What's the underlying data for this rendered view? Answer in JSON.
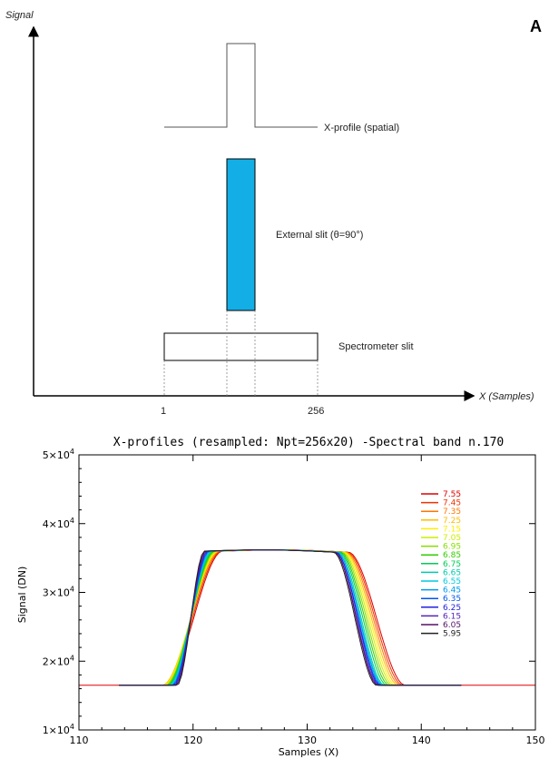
{
  "diagram": {
    "panel_label": "A",
    "y_axis_label": "Signal",
    "x_axis_label": "X (Samples)",
    "tick_1": "1",
    "tick_256": "256",
    "profile_label": "X-profile (spatial)",
    "slit_label": "External slit (θ=90°)",
    "spectrometer_label": "Spectrometer slit",
    "slit_color": "#13aee6"
  },
  "chart_data": {
    "type": "line",
    "title": "X-profiles (resampled: Npt=256x20) -Spectral band n.170",
    "xlabel": "Samples (X)",
    "ylabel": "Signal (DN)",
    "xlim": [
      110,
      150
    ],
    "ylim": [
      10000,
      50000
    ],
    "x_ticks": [
      "110",
      "120",
      "130",
      "140",
      "150"
    ],
    "y_ticks": [
      {
        "value": 10000,
        "mant": "1×10",
        "exp": "4"
      },
      {
        "value": 20000,
        "mant": "2×10",
        "exp": "4"
      },
      {
        "value": 30000,
        "mant": "3×10",
        "exp": "4"
      },
      {
        "value": 40000,
        "mant": "4×10",
        "exp": "4"
      },
      {
        "value": 50000,
        "mant": "5×10",
        "exp": "4"
      }
    ],
    "base_level": 16500,
    "plateau_level": 36000,
    "series": [
      {
        "name": "7.55",
        "color": "#dd0000",
        "rise": [
          117.5,
          122.6
        ],
        "fall": [
          133.6,
          138.6
        ]
      },
      {
        "name": "7.45",
        "color": "#ee3300",
        "rise": [
          117.4,
          122.5
        ],
        "fall": [
          133.5,
          138.4
        ]
      },
      {
        "name": "7.35",
        "color": "#ff7700",
        "rise": [
          117.3,
          122.4
        ],
        "fall": [
          133.4,
          138.2
        ]
      },
      {
        "name": "7.25",
        "color": "#ffbb00",
        "rise": [
          117.3,
          122.3
        ],
        "fall": [
          133.3,
          138.0
        ]
      },
      {
        "name": "7.15",
        "color": "#ffee00",
        "rise": [
          117.4,
          122.2
        ],
        "fall": [
          133.2,
          137.8
        ]
      },
      {
        "name": "7.05",
        "color": "#ccee00",
        "rise": [
          117.5,
          122.1
        ],
        "fall": [
          133.1,
          137.6
        ]
      },
      {
        "name": "6.95",
        "color": "#88dd00",
        "rise": [
          117.6,
          122.0
        ],
        "fall": [
          133.0,
          137.4
        ]
      },
      {
        "name": "6.85",
        "color": "#33cc00",
        "rise": [
          117.7,
          121.9
        ],
        "fall": [
          132.9,
          137.2
        ]
      },
      {
        "name": "6.75",
        "color": "#00cc55",
        "rise": [
          117.8,
          121.8
        ],
        "fall": [
          132.8,
          137.0
        ]
      },
      {
        "name": "6.65",
        "color": "#00ccaa",
        "rise": [
          117.9,
          121.7
        ],
        "fall": [
          132.7,
          136.8
        ]
      },
      {
        "name": "6.55",
        "color": "#00ccdd",
        "rise": [
          118.0,
          121.6
        ],
        "fall": [
          132.6,
          136.7
        ]
      },
      {
        "name": "6.45",
        "color": "#0099ee",
        "rise": [
          118.1,
          121.5
        ],
        "fall": [
          132.6,
          136.6
        ]
      },
      {
        "name": "6.35",
        "color": "#0055ee",
        "rise": [
          118.2,
          121.4
        ],
        "fall": [
          132.5,
          136.5
        ]
      },
      {
        "name": "6.25",
        "color": "#2222dd",
        "rise": [
          118.3,
          121.3
        ],
        "fall": [
          132.5,
          136.4
        ]
      },
      {
        "name": "6.15",
        "color": "#5522bb",
        "rise": [
          118.4,
          121.2
        ],
        "fall": [
          132.4,
          136.3
        ]
      },
      {
        "name": "6.05",
        "color": "#551166",
        "rise": [
          118.5,
          121.1
        ],
        "fall": [
          132.4,
          136.2
        ]
      },
      {
        "name": "5.95",
        "color": "#222222",
        "rise": [
          118.6,
          121.0
        ],
        "fall": [
          132.3,
          136.1
        ]
      }
    ]
  }
}
